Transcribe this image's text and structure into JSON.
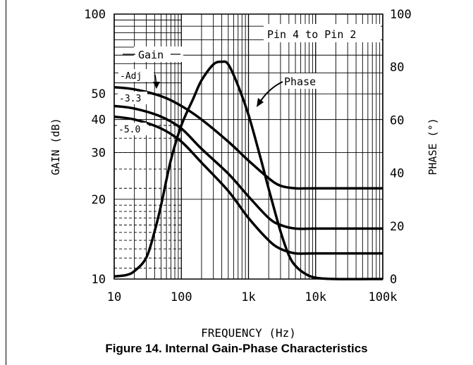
{
  "caption": "Figure 14. Internal Gain-Phase Characteristics",
  "chart_data": {
    "type": "line",
    "title": "",
    "xlabel": "FREQUENCY (Hz)",
    "ylabel_left": "GAIN (dB)",
    "ylabel_right": "PHASE (°)",
    "x_scale": "log",
    "x_range": [
      10,
      100000
    ],
    "x_ticks": [
      10,
      100,
      1000,
      10000,
      100000
    ],
    "x_tick_labels": [
      "10",
      "100",
      "1k",
      "10k",
      "100k"
    ],
    "y_left_scale": "log",
    "y_left_range": [
      10,
      100
    ],
    "y_left_ticks": [
      10,
      20,
      30,
      40,
      50,
      100
    ],
    "y_left_tick_labels": [
      "10",
      "20",
      "30",
      "40",
      "50",
      "100"
    ],
    "y_right_range": [
      0,
      100
    ],
    "y_right_ticks": [
      0,
      20,
      40,
      60,
      80,
      100
    ],
    "y_right_tick_labels": [
      "0",
      "20",
      "40",
      "60",
      "80",
      "100"
    ],
    "grid": true,
    "annotations": {
      "box": "Pin 4 to Pin 2",
      "gain": "Gain",
      "phase": "Phase",
      "adj": "-Adj",
      "v33": "-3.3",
      "v50": "-5.0"
    },
    "series": [
      {
        "name": "-Adj",
        "axis": "left",
        "x": [
          10,
          20,
          50,
          100,
          200,
          500,
          1000,
          2000,
          3000,
          5000,
          10000,
          100000
        ],
        "y": [
          53,
          52,
          49,
          45,
          40,
          33,
          28,
          24,
          22.5,
          22,
          22,
          22
        ]
      },
      {
        "name": "-3.3",
        "axis": "left",
        "x": [
          10,
          20,
          50,
          100,
          200,
          500,
          1000,
          2000,
          3000,
          5000,
          10000,
          100000
        ],
        "y": [
          45,
          44,
          41,
          37,
          31,
          25,
          20.5,
          17,
          16,
          15.5,
          15.5,
          15.5
        ]
      },
      {
        "name": "-5.0",
        "axis": "left",
        "x": [
          10,
          20,
          50,
          100,
          200,
          500,
          1000,
          2000,
          3000,
          5000,
          10000,
          100000
        ],
        "y": [
          41,
          40,
          37,
          33,
          27.5,
          21.5,
          17,
          14,
          13,
          12.5,
          12.5,
          12.5
        ]
      },
      {
        "name": "Phase",
        "axis": "right",
        "x": [
          10,
          15,
          20,
          30,
          40,
          50,
          70,
          100,
          150,
          200,
          300,
          400,
          500,
          700,
          1000,
          1500,
          2000,
          3000,
          4000,
          5000,
          7000,
          10000,
          20000,
          100000
        ],
        "y": [
          1,
          1.5,
          3,
          8,
          18,
          28,
          45,
          58,
          68,
          75,
          81,
          82,
          81,
          73,
          62,
          46,
          34,
          18,
          9,
          5,
          2,
          0.5,
          0,
          0
        ]
      }
    ]
  }
}
